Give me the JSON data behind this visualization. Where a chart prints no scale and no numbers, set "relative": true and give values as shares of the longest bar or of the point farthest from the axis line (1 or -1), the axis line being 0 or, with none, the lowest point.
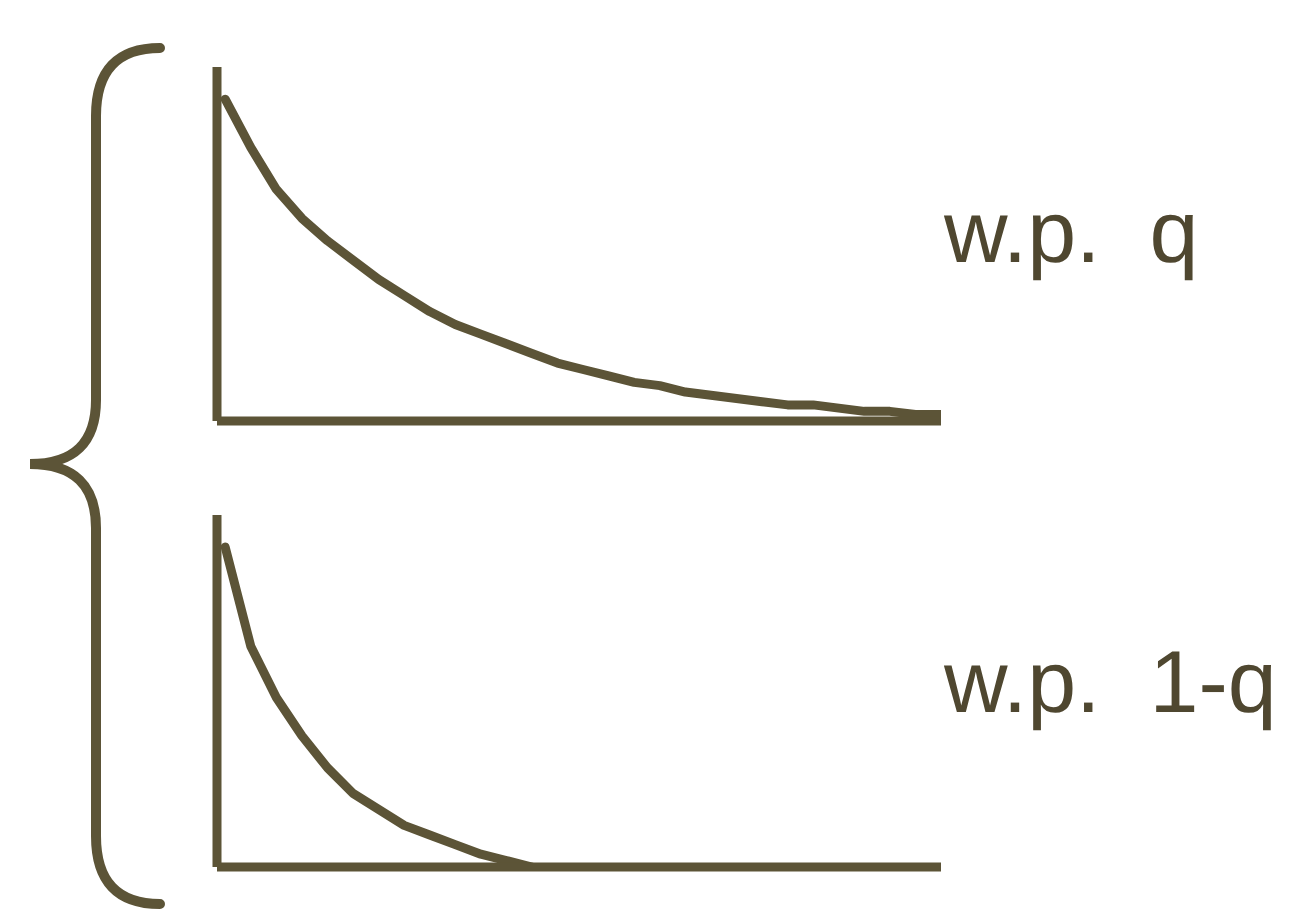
{
  "chart_data": [
    {
      "type": "line",
      "relative": true,
      "categories": [
        null,
        null,
        null,
        null,
        null,
        null,
        null,
        null,
        null,
        null,
        null,
        null,
        null,
        null,
        null,
        null,
        null,
        null,
        null,
        null,
        null,
        null,
        null,
        null,
        null,
        null,
        null,
        null,
        null
      ],
      "series": [
        {
          "color": "#5c5437",
          "values": [
            1,
            0.85,
            0.72,
            0.63,
            0.56,
            0.5,
            0.44,
            0.39,
            0.34,
            0.3,
            0.27,
            0.24,
            0.21,
            0.18,
            0.16,
            0.14,
            0.12,
            0.11,
            0.09,
            0.08,
            0.07,
            0.06,
            0.05,
            0.05,
            0.04,
            0.03,
            0.03,
            0.02,
            0.02
          ]
        }
      ],
      "annotations": [
        "w.p.  q"
      ]
    },
    {
      "type": "line",
      "relative": true,
      "categories": [
        null,
        null,
        null,
        null,
        null,
        null,
        null,
        null,
        null,
        null,
        null,
        null,
        null,
        null,
        null,
        null,
        null,
        null,
        null,
        null,
        null,
        null,
        null,
        null,
        null,
        null,
        null,
        null,
        null
      ],
      "series": [
        {
          "color": "#5c5437",
          "values": [
            1,
            0.69,
            0.53,
            0.41,
            0.31,
            0.23,
            0.18,
            0.13,
            0.1,
            0.07,
            0.04,
            0.02,
            0,
            null,
            null,
            null,
            null,
            null,
            null,
            null,
            null,
            null,
            null,
            null,
            null,
            null,
            null,
            null,
            null
          ]
        }
      ],
      "annotations": [
        "w.p.  1-q"
      ]
    }
  ]
}
